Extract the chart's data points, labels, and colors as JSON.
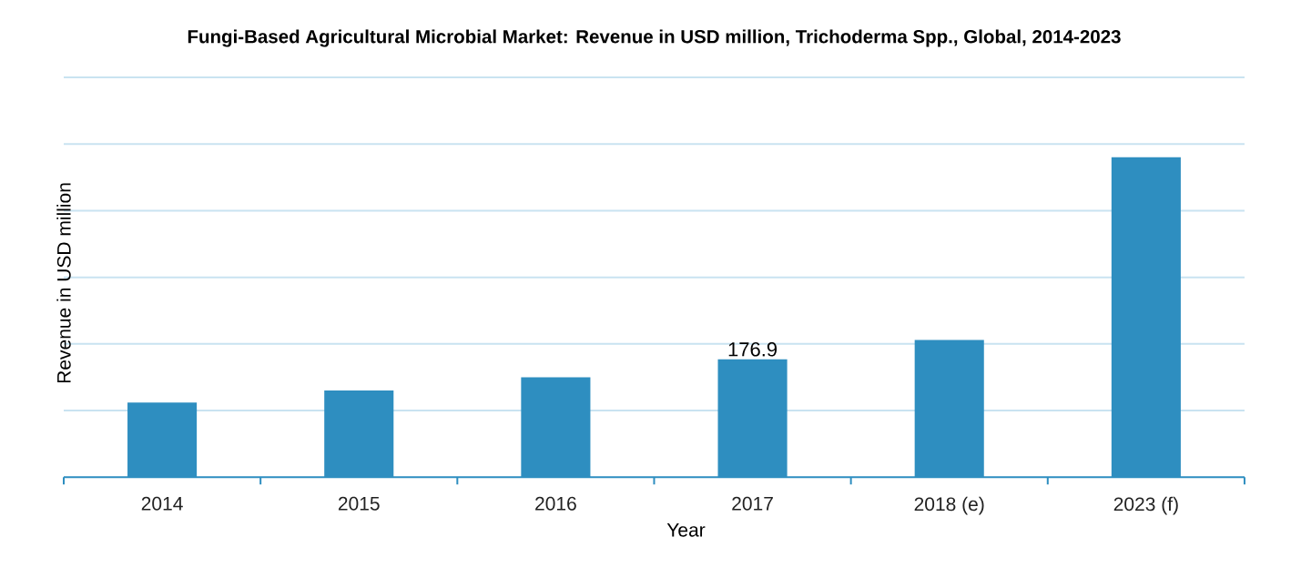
{
  "chart_data": {
    "type": "bar",
    "title": "Fungi-Based Agricultural Microbial Market: Revenue in USD million, Trichoderma Spp., Global, 2014-2023",
    "xlabel": "Year",
    "ylabel": "Revenue in USD million",
    "categories": [
      "2014",
      "2015",
      "2016",
      "2017",
      "2018 (e)",
      "2023 (f)"
    ],
    "values": [
      112,
      130,
      150,
      176.9,
      206,
      480
    ],
    "value_labels": [
      null,
      null,
      null,
      "176.9",
      null,
      null
    ],
    "color": "#2e8ec0",
    "ylim": [
      0,
      600
    ],
    "yticks": [
      {
        "value": 100,
        "label": null
      },
      {
        "value": 200,
        "label": null
      },
      {
        "value": 300,
        "label": null
      },
      {
        "value": 400,
        "label": null
      },
      {
        "value": 500,
        "label": null
      },
      {
        "value": 600,
        "label": null
      }
    ],
    "grid": "y",
    "tick_labels": "x"
  }
}
